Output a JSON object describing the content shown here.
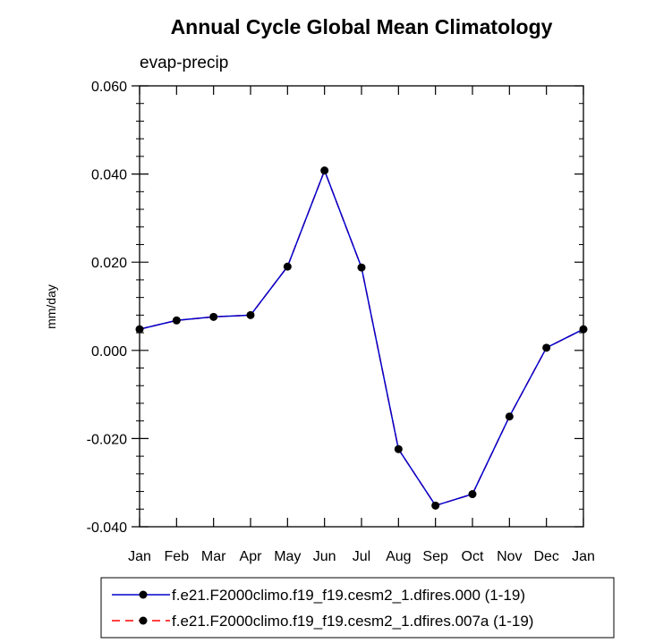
{
  "chart_data": {
    "type": "line",
    "title": "Annual Cycle Global Mean Climatology",
    "subtitle": "evap-precip",
    "ylabel": "mm/day",
    "xlabel": "",
    "categories": [
      "Jan",
      "Feb",
      "Mar",
      "Apr",
      "May",
      "Jun",
      "Jul",
      "Aug",
      "Sep",
      "Oct",
      "Nov",
      "Dec",
      "Jan"
    ],
    "ylim": [
      -0.04,
      0.06
    ],
    "yticks": [
      "0.060",
      "0.040",
      "0.020",
      "0.000",
      "-0.020",
      "-0.040"
    ],
    "ytick_values": [
      0.06,
      0.04,
      0.02,
      0.0,
      -0.02,
      -0.04
    ],
    "grid": false,
    "legend_position": "bottom",
    "series": [
      {
        "name": "f.e21.F2000climo.f19_f19.cesm2_1.dfires.000 (1-19)",
        "color": "#0000cc",
        "style": "solid",
        "values": [
          0.0048,
          0.0068,
          0.0076,
          0.008,
          0.019,
          0.0408,
          0.0188,
          -0.0224,
          -0.0352,
          -0.0326,
          -0.015,
          0.0006,
          0.0048
        ]
      },
      {
        "name": "f.e21.F2000climo.f19_f19.cesm2_1.dfires.007a (1-19)",
        "color": "#ff0000",
        "style": "dashed",
        "values": [
          0.0048,
          0.0068,
          0.0076,
          0.008,
          0.019,
          0.0408,
          0.0188,
          -0.0224,
          -0.0352,
          -0.0326,
          -0.015,
          0.0006,
          0.0048
        ]
      }
    ]
  }
}
